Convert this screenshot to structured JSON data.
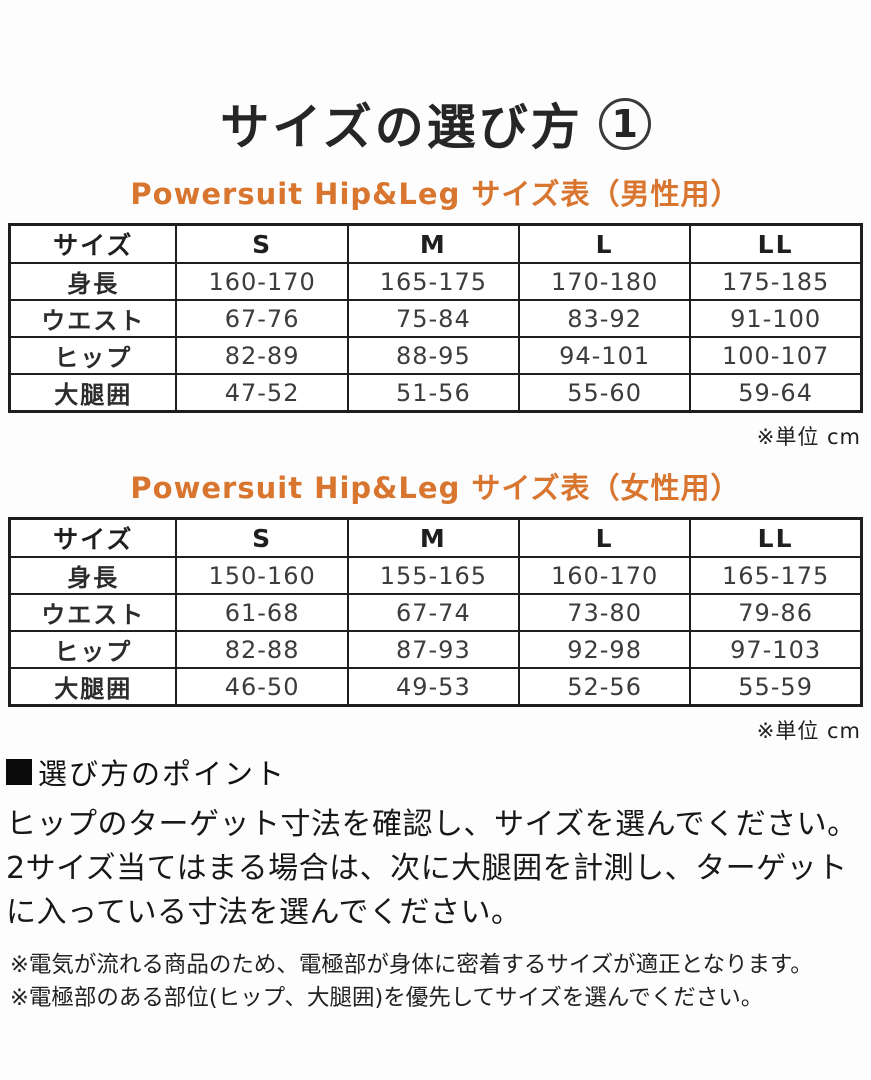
{
  "page": {
    "title": "サイズの選び方",
    "title_badge": "1"
  },
  "colors": {
    "accent_orange": "#d8752f",
    "text_dark": "#262626",
    "table_border": "#1e1e1e"
  },
  "tables": [
    {
      "subtitle": "Powersuit Hip&Leg サイズ表（男性用）",
      "header": [
        "サイズ",
        "S",
        "M",
        "L",
        "LL"
      ],
      "rows": [
        {
          "label": "身長",
          "values": [
            "160-170",
            "165-175",
            "170-180",
            "175-185"
          ]
        },
        {
          "label": "ウエスト",
          "values": [
            "67-76",
            "75-84",
            "83-92",
            "91-100"
          ]
        },
        {
          "label": "ヒップ",
          "values": [
            "82-89",
            "88-95",
            "94-101",
            "100-107"
          ]
        },
        {
          "label": "大腿囲",
          "values": [
            "47-52",
            "51-56",
            "55-60",
            "59-64"
          ]
        }
      ],
      "unit_note": "※単位 cm"
    },
    {
      "subtitle": "Powersuit Hip&Leg サイズ表（女性用）",
      "header": [
        "サイズ",
        "S",
        "M",
        "L",
        "LL"
      ],
      "rows": [
        {
          "label": "身長",
          "values": [
            "150-160",
            "155-165",
            "160-170",
            "165-175"
          ]
        },
        {
          "label": "ウエスト",
          "values": [
            "61-68",
            "67-74",
            "73-80",
            "79-86"
          ]
        },
        {
          "label": "ヒップ",
          "values": [
            "82-88",
            "87-93",
            "92-98",
            "97-103"
          ]
        },
        {
          "label": "大腿囲",
          "values": [
            "46-50",
            "49-53",
            "52-56",
            "55-59"
          ]
        }
      ],
      "unit_note": "※単位 cm"
    }
  ],
  "points": {
    "heading": "選び方のポイント",
    "lines": [
      "ヒップのターゲット寸法を確認し、サイズを選んでください。",
      "2サイズ当てはまる場合は、次に大腿囲を計測し、ターゲット",
      "に入っている寸法を選んでください。"
    ],
    "notes": [
      "※電気が流れる商品のため、電極部が身体に密着するサイズが適正となります。",
      "※電極部のある部位(ヒップ、大腿囲)を優先してサイズを選んでください。"
    ]
  }
}
